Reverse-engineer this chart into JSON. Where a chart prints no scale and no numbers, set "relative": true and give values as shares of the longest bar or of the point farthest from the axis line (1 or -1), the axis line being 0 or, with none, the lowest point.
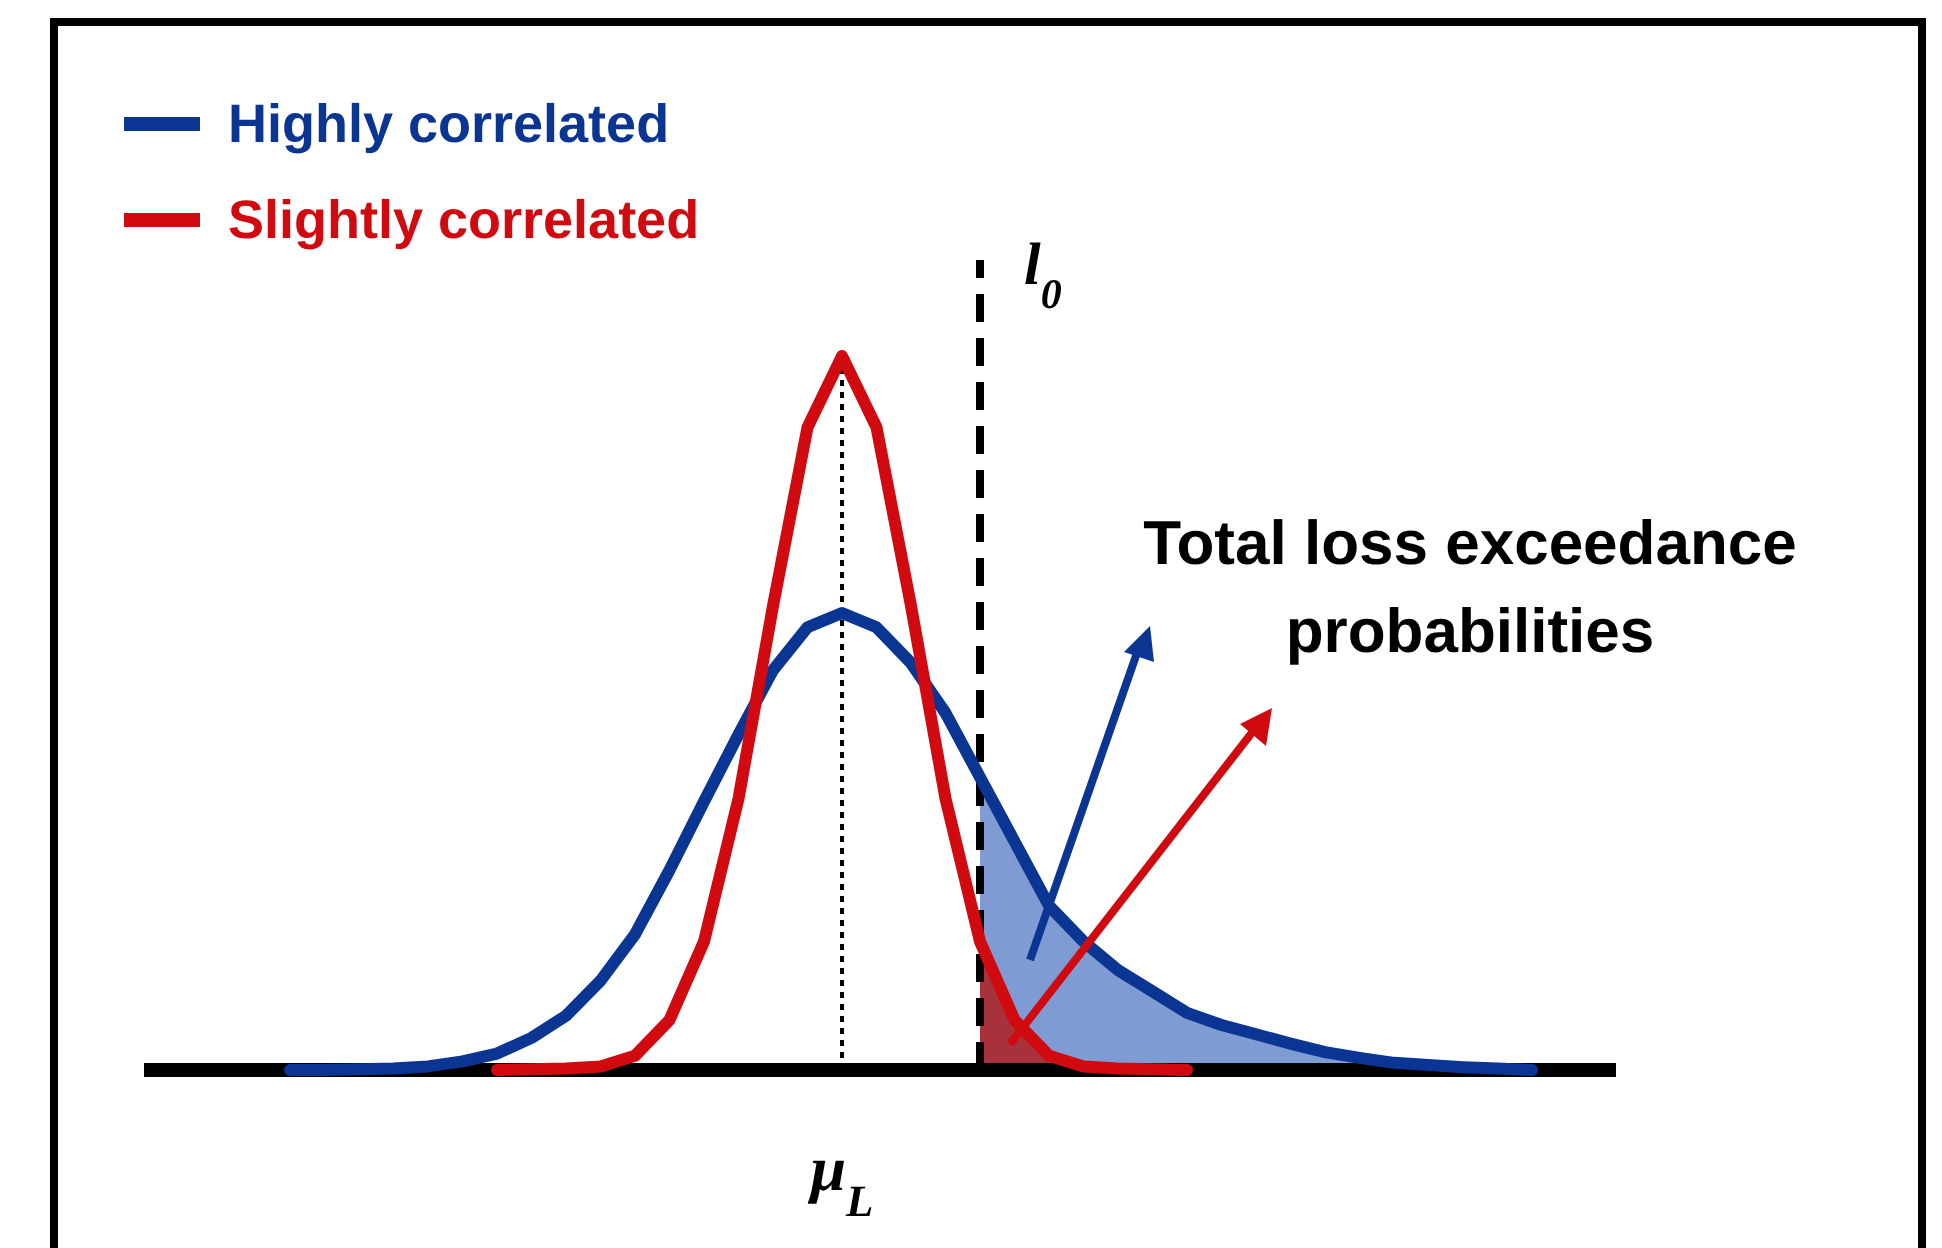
{
  "chart_data": {
    "type": "line",
    "relative": true,
    "legend": "top left",
    "categories": [
      null,
      null,
      null,
      null,
      null,
      null,
      null,
      null,
      null,
      null,
      null,
      null,
      null,
      null,
      null,
      null,
      null,
      null,
      null,
      null,
      null,
      null,
      null,
      null,
      null,
      null,
      null,
      null,
      null,
      null,
      null,
      null,
      null,
      null,
      null,
      null,
      null
    ],
    "annotations": [
      "Total loss exceedance probabilities",
      "l$_{0}$",
      "μ$_{L}$"
    ],
    "series": [
      {
        "type": "area",
        "color": "#7f9bd3",
        "values": [
          null,
          null,
          null,
          null,
          null,
          null,
          null,
          null,
          null,
          null,
          null,
          null,
          null,
          null,
          null,
          null,
          null,
          null,
          null,
          null,
          0.41,
          0.32,
          0.23,
          0.18,
          0.14,
          0.11,
          0.08,
          0.063,
          0.05,
          0.037,
          0.025,
          0.017,
          0.01,
          0.007,
          0.004,
          0.002,
          0
        ]
      },
      {
        "type": "area",
        "color": "#a8323c",
        "values": [
          null,
          null,
          null,
          null,
          null,
          null,
          null,
          null,
          null,
          null,
          null,
          null,
          null,
          null,
          null,
          null,
          null,
          null,
          null,
          null,
          0.18,
          0.07,
          0.02,
          0.005,
          0.002,
          0.001,
          0,
          null,
          null,
          null,
          null,
          null,
          null,
          null,
          null,
          null,
          null
        ]
      },
      {
        "name": "Highly correlated",
        "color": "#0a3593",
        "values": [
          0,
          0,
          0.001,
          0.002,
          0.005,
          0.012,
          0.023,
          0.045,
          0.076,
          0.125,
          0.19,
          0.28,
          0.376,
          0.47,
          0.56,
          0.62,
          0.64,
          0.62,
          0.57,
          0.5,
          0.41,
          0.32,
          0.23,
          0.18,
          0.14,
          0.11,
          0.08,
          0.063,
          0.05,
          0.037,
          0.025,
          0.017,
          0.01,
          0.007,
          0.004,
          0.002,
          0
        ]
      },
      {
        "name": "Slightly correlated",
        "color": "#d10a10",
        "values": [
          null,
          null,
          null,
          null,
          null,
          null,
          0,
          0.001,
          0.002,
          0.005,
          0.02,
          0.07,
          0.18,
          0.38,
          0.65,
          0.9,
          1,
          0.9,
          0.65,
          0.38,
          0.18,
          0.07,
          0.02,
          0.005,
          0.002,
          0.001,
          0,
          null,
          null,
          null,
          null,
          null,
          null,
          null,
          null,
          null,
          null
        ]
      }
    ]
  }
}
